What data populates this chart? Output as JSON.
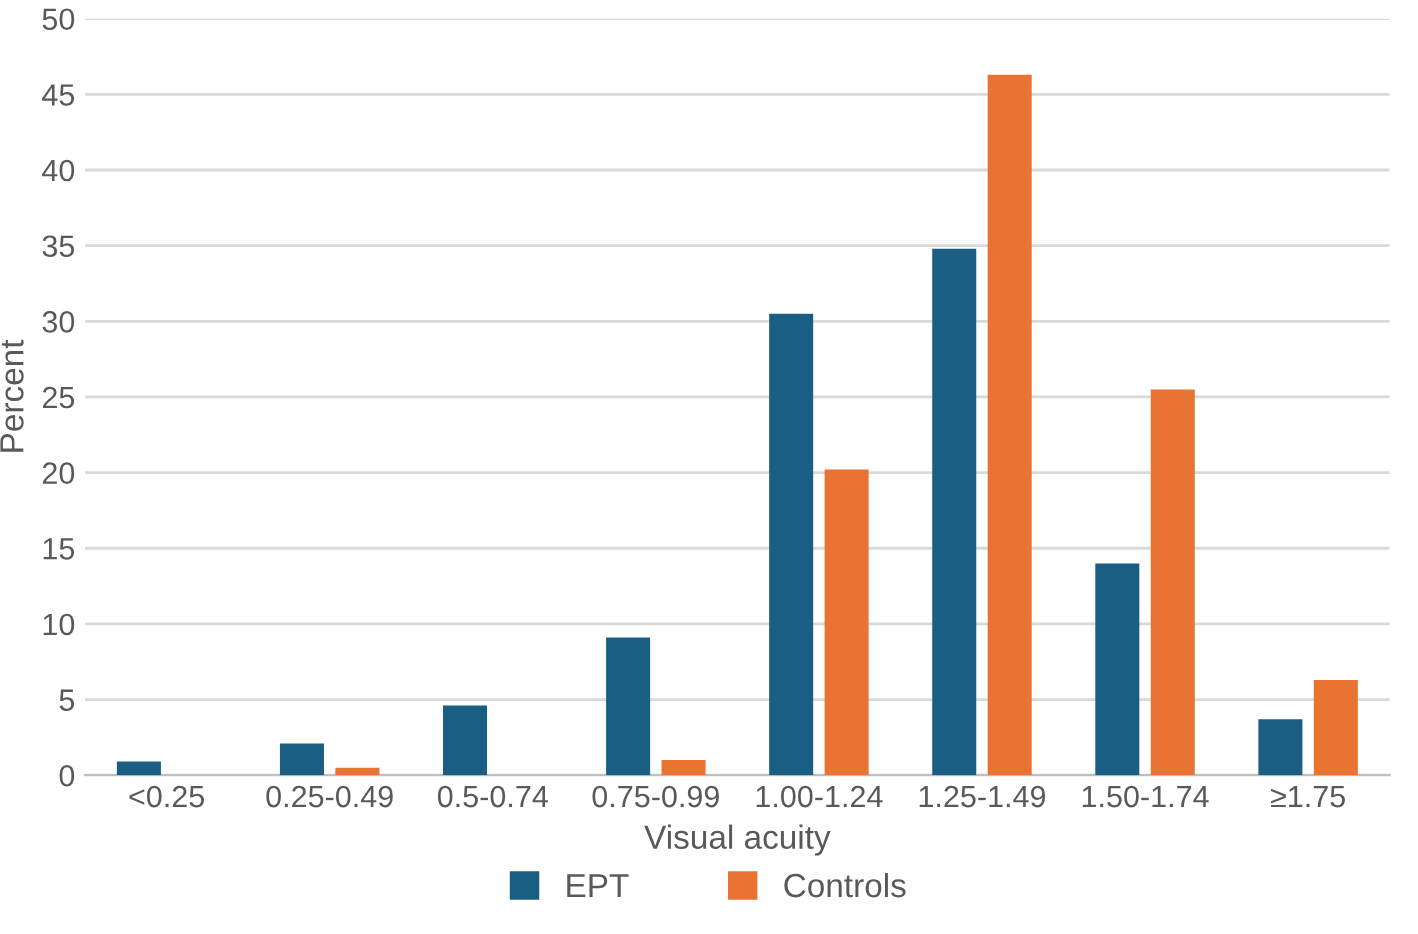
{
  "chart_data": {
    "type": "bar",
    "xlabel": "Visual acuity",
    "ylabel": "Percent",
    "categories": [
      "<0.25",
      "0.25-0.49",
      "0.5-0.74",
      "0.75-0.99",
      "1.00-1.24",
      "1.25-1.49",
      "1.50-1.74",
      "≥1.75"
    ],
    "series": [
      {
        "name": "EPT",
        "color": "#1a5f83",
        "values": [
          0.9,
          2.1,
          4.6,
          9.1,
          30.5,
          34.8,
          14.0,
          3.7
        ]
      },
      {
        "name": "Controls",
        "color": "#e97332",
        "values": [
          0,
          0.5,
          0,
          1.0,
          20.2,
          46.3,
          25.5,
          6.3
        ]
      }
    ],
    "ylim": [
      0,
      50
    ],
    "yticks": [
      0,
      5,
      10,
      15,
      20,
      25,
      30,
      35,
      40,
      45,
      50
    ],
    "grid": "y",
    "legend": "bottom"
  }
}
